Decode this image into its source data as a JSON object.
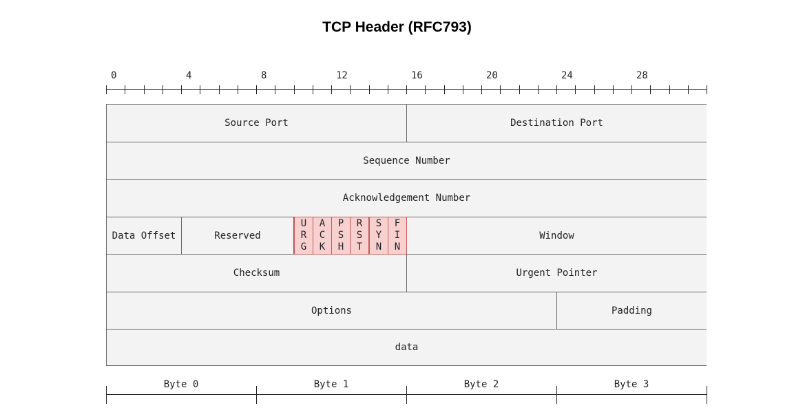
{
  "title": "TCP Header (RFC793)",
  "ruler": {
    "bits": 32,
    "labels": [
      "0",
      "4",
      "8",
      "12",
      "16",
      "20",
      "24",
      "28"
    ]
  },
  "fields": {
    "source_port": "Source Port",
    "destination_port": "Destination Port",
    "sequence_number": "Sequence Number",
    "acknowledgement_number": "Acknowledgement Number",
    "data_offset": "Data Offset",
    "reserved": "Reserved",
    "window": "Window",
    "checksum": "Checksum",
    "urgent_pointer": "Urgent Pointer",
    "options": "Options",
    "padding": "Padding",
    "data": "data"
  },
  "flags": [
    {
      "letters": [
        "U",
        "R",
        "G"
      ]
    },
    {
      "letters": [
        "A",
        "C",
        "K"
      ]
    },
    {
      "letters": [
        "P",
        "S",
        "H"
      ]
    },
    {
      "letters": [
        "R",
        "S",
        "T"
      ]
    },
    {
      "letters": [
        "S",
        "Y",
        "N"
      ]
    },
    {
      "letters": [
        "F",
        "I",
        "N"
      ]
    }
  ],
  "bytes": [
    "Byte 0",
    "Byte 1",
    "Byte 2",
    "Byte 3"
  ],
  "colors": {
    "field_fill": "#f3f3f3",
    "flag_fill": "#f9d0d0",
    "flag_border": "#c45a5a"
  }
}
